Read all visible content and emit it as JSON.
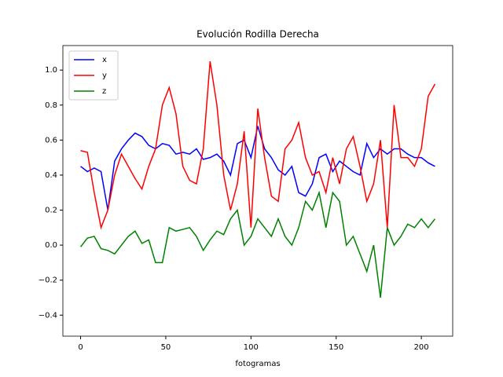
{
  "chart_data": {
    "type": "line",
    "title": "Evolución Rodilla Derecha",
    "x_label": "fotogramas",
    "x": [
      0,
      4,
      8,
      12,
      16,
      20,
      24,
      28,
      32,
      36,
      40,
      44,
      48,
      52,
      56,
      60,
      64,
      68,
      72,
      76,
      80,
      84,
      88,
      92,
      96,
      100,
      104,
      108,
      112,
      116,
      120,
      124,
      128,
      132,
      136,
      140,
      144,
      148,
      152,
      156,
      160,
      164,
      168,
      172,
      176,
      180,
      184,
      188,
      192,
      196,
      200,
      204,
      208
    ],
    "series": [
      {
        "name": "x",
        "color": "#0000ff",
        "values": [
          0.45,
          0.42,
          0.44,
          0.42,
          0.2,
          0.48,
          0.55,
          0.6,
          0.64,
          0.62,
          0.57,
          0.55,
          0.58,
          0.57,
          0.52,
          0.53,
          0.52,
          0.55,
          0.49,
          0.5,
          0.52,
          0.48,
          0.4,
          0.58,
          0.6,
          0.5,
          0.68,
          0.55,
          0.5,
          0.43,
          0.4,
          0.45,
          0.3,
          0.28,
          0.35,
          0.5,
          0.52,
          0.42,
          0.48,
          0.45,
          0.42,
          0.4,
          0.58,
          0.5,
          0.55,
          0.52,
          0.55,
          0.55,
          0.52,
          0.5,
          0.5,
          0.47,
          0.45
        ]
      },
      {
        "name": "y",
        "color": "#ff0000",
        "values": [
          0.54,
          0.53,
          0.3,
          0.1,
          0.2,
          0.4,
          0.52,
          0.45,
          0.38,
          0.32,
          0.45,
          0.55,
          0.8,
          0.9,
          0.75,
          0.45,
          0.37,
          0.35,
          0.55,
          1.05,
          0.8,
          0.4,
          0.2,
          0.35,
          0.65,
          0.1,
          0.78,
          0.5,
          0.28,
          0.25,
          0.55,
          0.6,
          0.7,
          0.5,
          0.4,
          0.42,
          0.3,
          0.5,
          0.35,
          0.55,
          0.62,
          0.45,
          0.25,
          0.35,
          0.6,
          0.1,
          0.8,
          0.5,
          0.5,
          0.45,
          0.55,
          0.85,
          0.92
        ]
      },
      {
        "name": "z",
        "color": "#008000",
        "values": [
          -0.01,
          0.04,
          0.05,
          -0.02,
          -0.03,
          -0.05,
          0.0,
          0.05,
          0.08,
          0.01,
          0.03,
          -0.1,
          -0.1,
          0.1,
          0.08,
          0.09,
          0.1,
          0.05,
          -0.03,
          0.03,
          0.08,
          0.06,
          0.15,
          0.2,
          0.0,
          0.05,
          0.15,
          0.1,
          0.05,
          0.15,
          0.05,
          0.0,
          0.1,
          0.25,
          0.2,
          0.3,
          0.1,
          0.3,
          0.25,
          0.0,
          0.05,
          -0.05,
          -0.15,
          0.0,
          -0.3,
          0.1,
          0.0,
          0.05,
          0.12,
          0.1,
          0.15,
          0.1,
          0.15
        ]
      }
    ],
    "xlim": [
      -10.4,
      218.4
    ],
    "ylim": [
      -0.52,
      1.14
    ],
    "xticks": [
      0,
      50,
      100,
      150,
      200
    ],
    "yticks": [
      {
        "value": -0.4,
        "label": "−0.4"
      },
      {
        "value": -0.2,
        "label": "−0.2"
      },
      {
        "value": 0,
        "label": "0.0"
      },
      0.2,
      0.4,
      0.6,
      0.8,
      {
        "value": 1,
        "label": "1.0"
      }
    ],
    "legend": "upper left"
  }
}
